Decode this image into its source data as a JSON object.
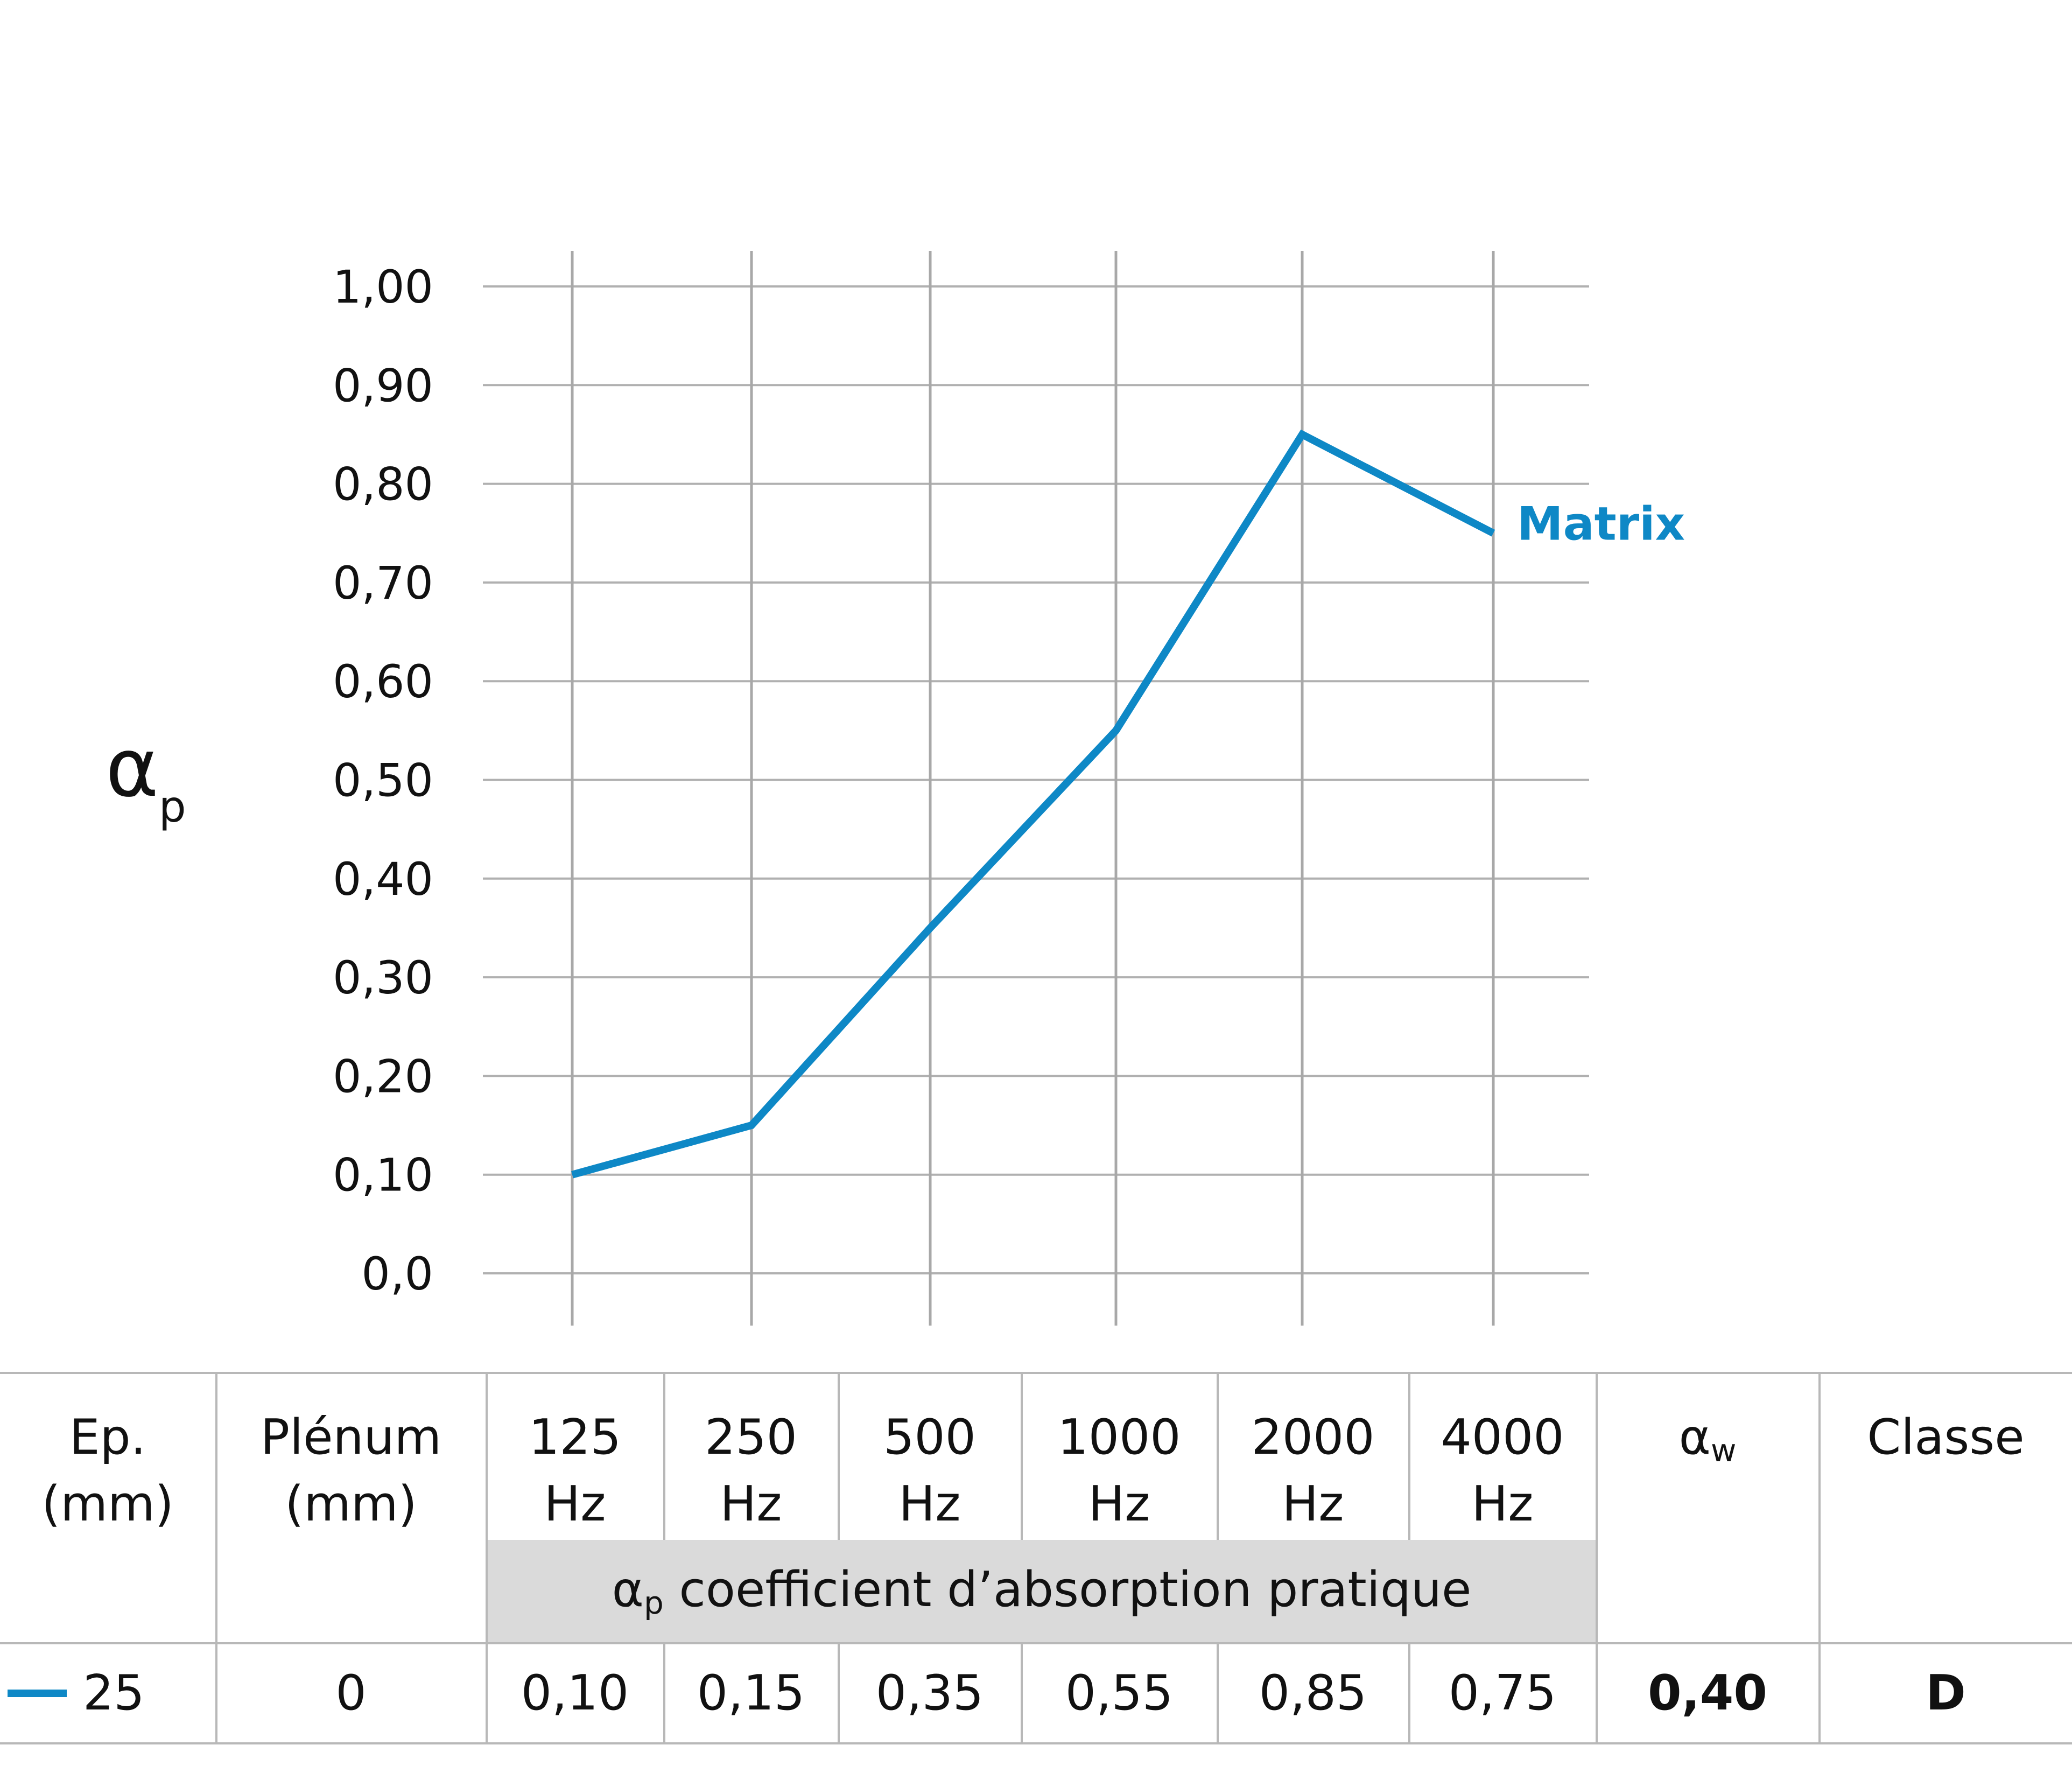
{
  "chart_data": {
    "type": "line",
    "x": [
      "125",
      "250",
      "500",
      "1000",
      "2000",
      "4000"
    ],
    "series": [
      {
        "name": "Matrix",
        "values": [
          0.1,
          0.15,
          0.35,
          0.55,
          0.85,
          0.75
        ],
        "color": "#0E88C6"
      }
    ],
    "yticks": [
      "0,0",
      "0,10",
      "0,20",
      "0,30",
      "0,40",
      "0,50",
      "0,60",
      "0,70",
      "0,80",
      "0,90",
      "1,00"
    ],
    "ylim": [
      0,
      1
    ],
    "ylabel": "α",
    "ylabel_sub": "p",
    "grid": true,
    "legend": "end-of-line label"
  },
  "table": {
    "headers": {
      "ep": [
        "Ep.",
        "(mm)"
      ],
      "plenum": [
        "Plénum",
        "(mm)"
      ],
      "freqs": [
        [
          "125",
          "Hz"
        ],
        [
          "250",
          "Hz"
        ],
        [
          "500",
          "Hz"
        ],
        [
          "1000",
          "Hz"
        ],
        [
          "2000",
          "Hz"
        ],
        [
          "4000",
          "Hz"
        ]
      ],
      "aw": "α",
      "aw_sub": "w",
      "classe": "Classe"
    },
    "band": {
      "alpha": "α",
      "sub": "p",
      "text": " coefficient d’absorption pratique"
    },
    "row": {
      "ep": "25",
      "plenum": "0",
      "values": [
        "0,10",
        "0,15",
        "0,35",
        "0,55",
        "0,85",
        "0,75"
      ],
      "aw": "0,40",
      "classe": "D"
    }
  }
}
